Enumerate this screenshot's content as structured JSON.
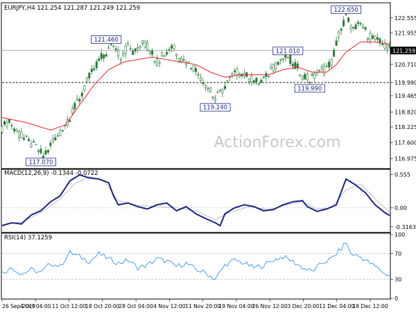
{
  "colors": {
    "candle": "#2a7a3a",
    "ma": "#e8202a",
    "macd": "#1a237e",
    "signal": "#bdbdbd",
    "rsi": "#1e88e5",
    "grid": "#b0b0b0",
    "label_border": "#1a237e",
    "label_text": "#1a237e",
    "watermark": "#c8c8c8",
    "price_box": "#000000"
  },
  "header": {
    "instrument": "EURJPY,H4  121.254 121.287 121.249 121.259"
  },
  "watermark": "ActionForex.com",
  "chart_data": [
    {
      "type": "candlestick",
      "title": "EURJPY,H4  121.254 121.287 121.249 121.259",
      "ylim": [
        116.6,
        123.1
      ],
      "y_ticks": [
        "122.555",
        "121.955",
        "121.259",
        "120.710",
        "119.990",
        "119.465",
        "118.820",
        "118.225",
        "117.600",
        "116.975"
      ],
      "y_tick_values": [
        122.555,
        121.955,
        121.259,
        120.71,
        119.99,
        119.465,
        118.82,
        118.225,
        117.6,
        116.975
      ],
      "current_price": "121.259",
      "current_price_value": 121.259,
      "horizontal_line": 119.99,
      "x_ticks": [
        "26 Sep 2019",
        "4 Oct 04:00",
        "11 Oct 12:00",
        "18 Oct 20:00",
        "28 Oct 04:00",
        "4 Nov 12:00",
        "11 Nov 20:00",
        "19 Nov 04:00",
        "26 Nov 12:00",
        "3 Dec 20:00",
        "11 Dec 04:00",
        "18 Dec 12:00"
      ],
      "price_path": [
        [
          0,
          118.2
        ],
        [
          3,
          118.5
        ],
        [
          6,
          118.0
        ],
        [
          10,
          117.7
        ],
        [
          14,
          117.4
        ],
        [
          17,
          117.1
        ],
        [
          20,
          117.5
        ],
        [
          24,
          118.0
        ],
        [
          28,
          118.6
        ],
        [
          32,
          119.4
        ],
        [
          36,
          120.2
        ],
        [
          40,
          120.9
        ],
        [
          43,
          121.2
        ],
        [
          46,
          121.5
        ],
        [
          49,
          121.0
        ],
        [
          52,
          121.4
        ],
        [
          55,
          121.2
        ],
        [
          58,
          121.6
        ],
        [
          61,
          121.3
        ],
        [
          64,
          120.8
        ],
        [
          67,
          121.1
        ],
        [
          70,
          121.5
        ],
        [
          73,
          121.0
        ],
        [
          76,
          120.8
        ],
        [
          79,
          120.6
        ],
        [
          82,
          120.2
        ],
        [
          85,
          119.8
        ],
        [
          88,
          119.3
        ],
        [
          91,
          119.7
        ],
        [
          94,
          120.1
        ],
        [
          97,
          120.4
        ],
        [
          100,
          120.3
        ],
        [
          103,
          120.1
        ],
        [
          106,
          120.0
        ],
        [
          109,
          120.2
        ],
        [
          112,
          120.6
        ],
        [
          115,
          120.9
        ],
        [
          118,
          121.0
        ],
        [
          121,
          120.7
        ],
        [
          124,
          120.3
        ],
        [
          127,
          120.1
        ],
        [
          130,
          120.3
        ],
        [
          133,
          120.5
        ],
        [
          136,
          120.8
        ],
        [
          139,
          121.9
        ],
        [
          142,
          122.6
        ],
        [
          145,
          122.1
        ],
        [
          148,
          122.3
        ],
        [
          151,
          121.9
        ],
        [
          154,
          121.7
        ],
        [
          157,
          121.5
        ],
        [
          160,
          121.3
        ]
      ],
      "ma_path": [
        [
          0,
          118.6
        ],
        [
          10,
          118.4
        ],
        [
          20,
          118.1
        ],
        [
          26,
          118.3
        ],
        [
          32,
          119.1
        ],
        [
          38,
          119.9
        ],
        [
          44,
          120.5
        ],
        [
          50,
          120.8
        ],
        [
          56,
          120.9
        ],
        [
          62,
          121.0
        ],
        [
          68,
          120.9
        ],
        [
          74,
          120.8
        ],
        [
          80,
          120.7
        ],
        [
          86,
          120.4
        ],
        [
          92,
          120.2
        ],
        [
          98,
          120.3
        ],
        [
          104,
          120.3
        ],
        [
          110,
          120.3
        ],
        [
          116,
          120.5
        ],
        [
          122,
          120.6
        ],
        [
          128,
          120.4
        ],
        [
          134,
          120.4
        ],
        [
          138,
          120.7
        ],
        [
          142,
          121.2
        ],
        [
          148,
          121.6
        ],
        [
          154,
          121.6
        ],
        [
          160,
          121.5
        ]
      ],
      "labels": [
        {
          "text": "117.070",
          "x": 16,
          "value": 117.07
        },
        {
          "text": "121.460",
          "x": 43,
          "value": 121.46
        },
        {
          "text": "119.240",
          "x": 88,
          "value": 119.24
        },
        {
          "text": "121.010",
          "x": 118,
          "value": 121.01
        },
        {
          "text": "119.990",
          "x": 127,
          "value": 119.99
        },
        {
          "text": "122.650",
          "x": 142,
          "value": 122.65
        }
      ]
    },
    {
      "type": "line",
      "title": "MACD(12,26,9) -0.1344 -0.0722",
      "ylim": [
        -0.4,
        0.62
      ],
      "y_ticks": [
        "0.555",
        "0.00",
        "-0.3163"
      ],
      "y_tick_values": [
        0.555,
        0.0,
        -0.3163
      ],
      "series": [
        {
          "values_path": [
            [
              0,
              -0.3
            ],
            [
              4,
              -0.25
            ],
            [
              8,
              -0.27
            ],
            [
              12,
              -0.12
            ],
            [
              16,
              -0.05
            ],
            [
              20,
              0.1
            ],
            [
              24,
              0.2
            ],
            [
              28,
              0.45
            ],
            [
              32,
              0.55
            ],
            [
              36,
              0.5
            ],
            [
              40,
              0.48
            ],
            [
              44,
              0.42
            ],
            [
              46,
              0.2
            ],
            [
              48,
              0.05
            ],
            [
              52,
              0.08
            ],
            [
              56,
              0.02
            ],
            [
              60,
              -0.02
            ],
            [
              64,
              0.05
            ],
            [
              68,
              0.08
            ],
            [
              72,
              -0.05
            ],
            [
              76,
              0.02
            ],
            [
              80,
              -0.1
            ],
            [
              84,
              -0.18
            ],
            [
              88,
              -0.25
            ],
            [
              90,
              -0.3
            ],
            [
              92,
              -0.1
            ],
            [
              96,
              0.0
            ],
            [
              100,
              0.05
            ],
            [
              104,
              0.02
            ],
            [
              108,
              -0.05
            ],
            [
              112,
              -0.03
            ],
            [
              116,
              0.05
            ],
            [
              120,
              0.1
            ],
            [
              124,
              0.12
            ],
            [
              126,
              0.02
            ],
            [
              130,
              -0.06
            ],
            [
              134,
              -0.02
            ],
            [
              138,
              0.05
            ],
            [
              142,
              0.48
            ],
            [
              146,
              0.38
            ],
            [
              150,
              0.25
            ],
            [
              154,
              0.05
            ],
            [
              158,
              -0.08
            ],
            [
              160,
              -0.13
            ]
          ]
        },
        {
          "values_path": [
            [
              0,
              -0.28
            ],
            [
              8,
              -0.24
            ],
            [
              16,
              -0.08
            ],
            [
              24,
              0.15
            ],
            [
              30,
              0.4
            ],
            [
              36,
              0.52
            ],
            [
              42,
              0.45
            ],
            [
              48,
              0.12
            ],
            [
              56,
              0.04
            ],
            [
              64,
              0.02
            ],
            [
              72,
              0.0
            ],
            [
              80,
              -0.05
            ],
            [
              88,
              -0.2
            ],
            [
              94,
              -0.08
            ],
            [
              102,
              0.02
            ],
            [
              110,
              -0.03
            ],
            [
              118,
              0.05
            ],
            [
              124,
              0.1
            ],
            [
              130,
              -0.02
            ],
            [
              136,
              0.0
            ],
            [
              142,
              0.3
            ],
            [
              148,
              0.4
            ],
            [
              154,
              0.15
            ],
            [
              160,
              -0.07
            ]
          ]
        }
      ]
    },
    {
      "type": "line",
      "title": "RSI(14) 37.1259",
      "ylim": [
        0,
        100
      ],
      "y_ticks": [
        "100",
        "70",
        "30",
        "0"
      ],
      "y_tick_values": [
        100,
        70,
        30,
        0
      ],
      "series": [
        {
          "values_path": [
            [
              0,
              40
            ],
            [
              4,
              48
            ],
            [
              8,
              38
            ],
            [
              12,
              45
            ],
            [
              16,
              40
            ],
            [
              20,
              55
            ],
            [
              24,
              50
            ],
            [
              28,
              72
            ],
            [
              32,
              65
            ],
            [
              36,
              58
            ],
            [
              40,
              70
            ],
            [
              44,
              62
            ],
            [
              48,
              55
            ],
            [
              52,
              60
            ],
            [
              56,
              48
            ],
            [
              60,
              52
            ],
            [
              64,
              62
            ],
            [
              68,
              58
            ],
            [
              72,
              50
            ],
            [
              76,
              55
            ],
            [
              80,
              45
            ],
            [
              84,
              40
            ],
            [
              88,
              30
            ],
            [
              92,
              52
            ],
            [
              96,
              60
            ],
            [
              100,
              55
            ],
            [
              104,
              48
            ],
            [
              108,
              52
            ],
            [
              112,
              60
            ],
            [
              116,
              65
            ],
            [
              120,
              58
            ],
            [
              124,
              48
            ],
            [
              128,
              42
            ],
            [
              132,
              55
            ],
            [
              136,
              62
            ],
            [
              140,
              78
            ],
            [
              142,
              88
            ],
            [
              144,
              70
            ],
            [
              148,
              65
            ],
            [
              152,
              55
            ],
            [
              156,
              45
            ],
            [
              158,
              38
            ],
            [
              160,
              37
            ]
          ]
        }
      ]
    }
  ]
}
